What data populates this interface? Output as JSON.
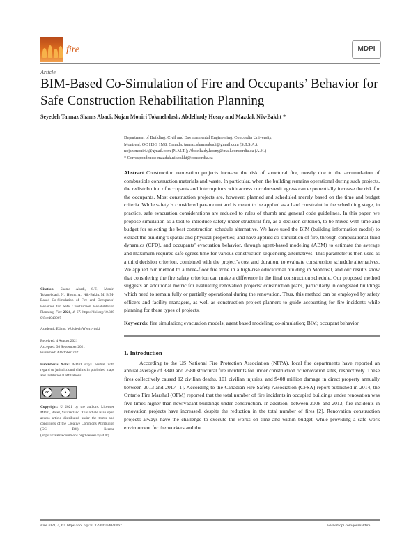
{
  "header": {
    "journal": "fire",
    "publisher_logo": "MDPI",
    "brand_color": "#d55a14"
  },
  "article_type": "Article",
  "title": "BIM-Based Co-Simulation of Fire and Occupants’ Behavior for Safe Construction Rehabilitation Planning",
  "authors": "Seyedeh Tannaz Shams Abadi, Nojan Moniri Tokmehdash, Abdelhady Hosny and Mazdak Nik-Bakht *",
  "affiliation": {
    "line1": "Department of Building, Civil and Environmental Engineering, Concordia University,",
    "line2": "Montreal, QC H3G 1M8, Canada; tannaz.shamsabadi@gmail.com (S.T.S.A.);",
    "line3": "nojan.moniri.t@gmail.com (N.M.T.); Abdelhady.hosny@mail.concordia.ca (A.H.)",
    "correspondence": "*   Correspondence: mazdak.nikbakht@concordia.ca"
  },
  "abstract": {
    "label": "Abstract",
    "text": "Construction renovation projects increase the risk of structural fire, mostly due to the accumulation of combustible construction materials and waste. In particular, when the building remains operational during such projects, the redistribution of occupants and interruptions with access corridors/exit egress can exponentially increase the risk for the occupants. Most construction projects are, however, planned and scheduled merely based on the time and budget criteria. While safety is considered paramount and is meant to be applied as a hard constraint in the scheduling stage, in practice, safe evacuation considerations are reduced to rules of thumb and general code guidelines. In this paper, we propose simulation as a tool to introduce safety under structural fire, as a decision criterion, to be mixed with time and budget for selecting the best construction schedule alternative. We have used the BIM (building information model) to extract the building’s spatial and physical properties; and have applied co-simulation of fire, through computational fluid dynamics (CFD), and occupants’ evacuation behavior, through agent-based modeling (ABM) to estimate the average and maximum required safe egress time for various construction sequencing alternatives. This parameter is then used as a third decision criterion, combined with the project’s cost and duration, to evaluate construction schedule alternatives. We applied our method to a three-floor fire zone in a high-rise educational building in Montreal, and our results show that considering the fire safety criterion can make a difference in the final construction schedule. Our proposed method suggests an additional metric for evaluating renovation projects’ construction plans, particularly in congested buildings which need to remain fully or partially operational during the renovation. Thus, this method can be employed by safety officers and facility managers, as well as construction project planners to guide accounting for fire incidents while planning for these types of projects."
  },
  "keywords": {
    "label": "Keywords:",
    "text": "fire simulation; evacuation models; agent based modeling; co-simulation; BIM; occupant behavior"
  },
  "sidebar": {
    "citation_label": "Citation:",
    "citation": "Shams Abadi, S.T.; Moniri Tokmehdash, N.; Hosny, A.; Nik-Bakht, M. BIM-Based Co-Simulation of Fire and Occupants’ Behavior for Safe Construction Rehabilitation Planning.",
    "citation_journal": "Fire",
    "citation_year": "2021",
    "citation_vol": ", 4, 67.",
    "citation_doi": "https://doi.org/10.3390/fire4040067",
    "editor": "Academic Editor: Wojciech Węgrzyński",
    "received": "Received: 4 August 2021",
    "accepted": "Accepted: 30 September 2021",
    "published": "Published: 4 October 2021",
    "publisher_note_label": "Publisher’s Note:",
    "publisher_note": "MDPI stays neutral with regard to jurisdictional claims in published maps and institutional affiliations.",
    "cc_badge": "cc BY",
    "copyright_label": "Copyright:",
    "copyright": "© 2021 by the authors. Licensee MDPI, Basel, Switzerland. This article is an open access article distributed under the terms and conditions of the Creative Commons Attribution (CC BY) license (https://creativecommons.org/licenses/by/4.0/)."
  },
  "introduction": {
    "heading": "1. Introduction",
    "text": "According to the US National Fire Protection Association (NFPA), local fire departments have reported an annual average of 3840 and 2580 structural fire incidents for under construction or renovation sites, respectively. These fires collectively caused 12 civilian deaths, 101 civilian injuries, and $408 million damage in direct property annually between 2013 and 2017 [1]. According to the Canadian Fire Safety Association (CFSA) report published in 2014, the Ontario Fire Marshal (OFM) reported that the total number of fire incidents in occupied buildings under renovation was five times higher than new/vacant buildings under construction. In addition, between 2008 and 2013, fire incidents in renovation projects have increased, despite the reduction in the total number of fires [2]. Renovation construction projects always have the challenge to execute the works on time and within budget, while providing a safe work environment for the workers and the"
  },
  "footer": {
    "journal": "Fire",
    "citation": "2021, 4, 67. https://doi.org/10.3390/fire4040067",
    "url": "www.mdpi.com/journal/fire"
  }
}
